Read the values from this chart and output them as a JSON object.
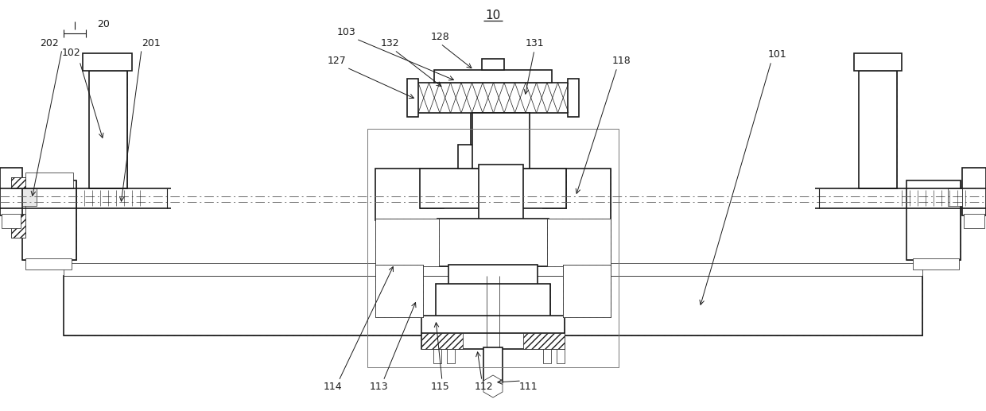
{
  "bg_color": "#ffffff",
  "line_color": "#1a1a1a",
  "figsize": [
    12.4,
    5.17
  ],
  "dpi": 100
}
